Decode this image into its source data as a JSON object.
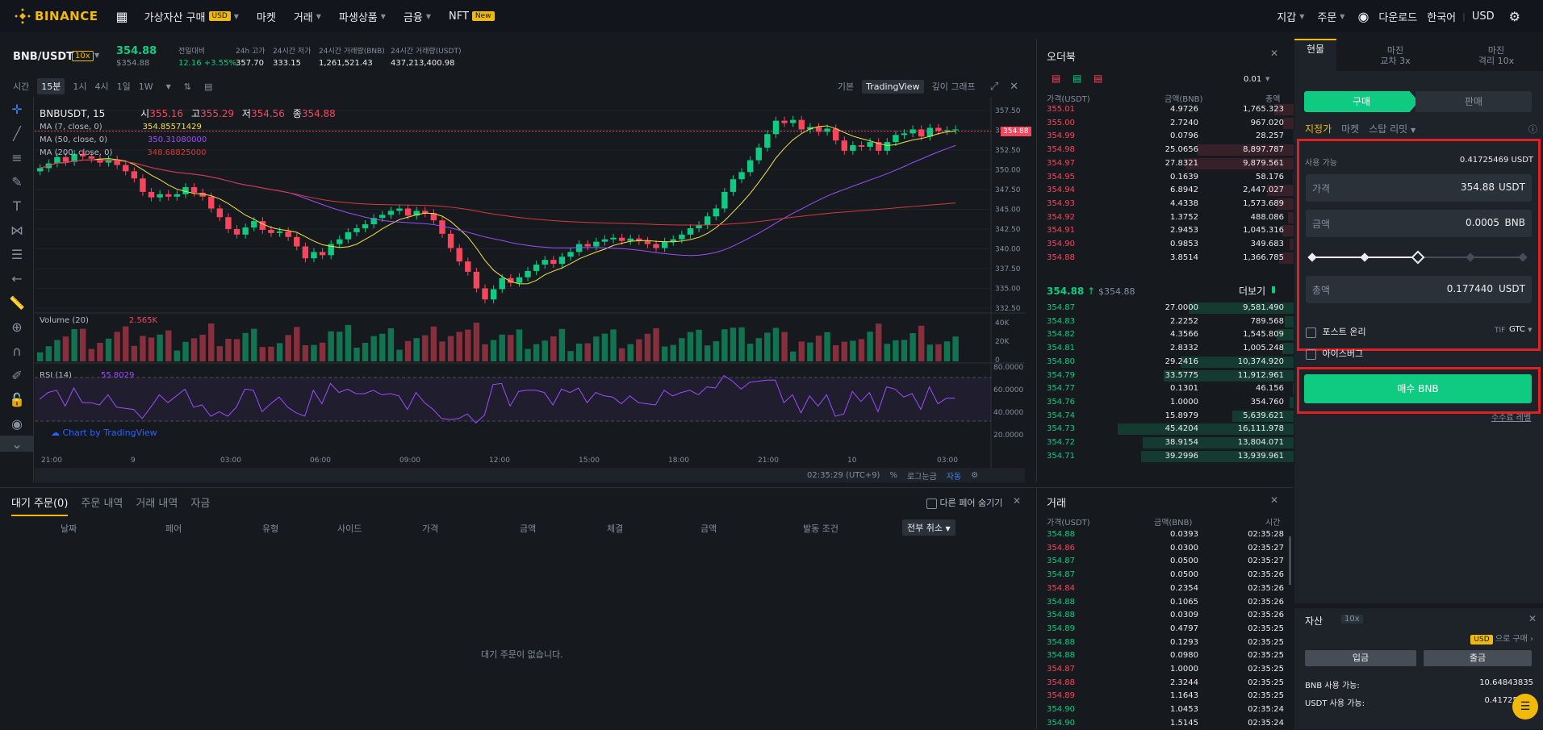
{
  "nav": {
    "logo": "BINANCE",
    "items": [
      "가상자산 구매",
      "마켓",
      "거래",
      "파생상품",
      "금융",
      "NFT"
    ],
    "usd_badge": "USD",
    "new_badge": "New",
    "right": [
      "지갑",
      "주문",
      "다운로드",
      "한국어",
      "USD"
    ]
  },
  "pair": {
    "symbol": "BNB/USDT",
    "leverage": "10x",
    "price": "354.88",
    "price_usd": "$354.88",
    "stats": [
      {
        "label": "전일대비",
        "value": "12.16 +3.55%"
      },
      {
        "label": "24h 고가",
        "value": "357.70"
      },
      {
        "label": "24시간 저가",
        "value": "333.15"
      },
      {
        "label": "24시간 거래량(BNB)",
        "value": "1,261,521.43"
      },
      {
        "label": "24시간 거래량(USDT)",
        "value": "437,213,400.98"
      }
    ]
  },
  "chart_toolbar": {
    "intervals": [
      "시간",
      "15분",
      "1시",
      "4시",
      "1일",
      "1W"
    ],
    "views": [
      "기본",
      "TradingView",
      "깊이 그래프"
    ]
  },
  "chart": {
    "title": "BNBUSDT, 15",
    "o_label": "시",
    "o": "355.16",
    "h_label": "고",
    "h": "355.29",
    "l_label": "저",
    "l": "354.56",
    "c_label": "종",
    "c": "354.88",
    "ma7": "MA (7, close, 0)",
    "ma7v": "354.85571429",
    "ma50": "MA (50, close, 0)",
    "ma50v": "350.31080000",
    "ma200": "MA (200, close, 0)",
    "ma200v": "348.68825000",
    "volume": "Volume (20)",
    "volv": "2.565K",
    "rsi": "RSI (14)",
    "rsiv": "55.8029",
    "credit": "Chart by TradingView",
    "last": "354.88",
    "price_ticks": [
      "357.50",
      "355.00",
      "352.50",
      "350.00",
      "347.50",
      "345.00",
      "342.50",
      "340.00",
      "337.50",
      "335.00",
      "332.50"
    ],
    "vol_ticks": [
      "40K",
      "20K",
      "0"
    ],
    "rsi_ticks": [
      "80.0000",
      "60.0000",
      "40.0000",
      "20.0000"
    ],
    "time_ticks": [
      "21:00",
      "9",
      "03:00",
      "06:00",
      "09:00",
      "12:00",
      "15:00",
      "18:00",
      "21:00",
      "10",
      "03:00"
    ],
    "footer": [
      "02:35:29 (UTC+9)",
      "%",
      "로그눈금",
      "자동"
    ]
  },
  "chart_data": {
    "type": "candlestick",
    "title": "BNBUSDT, 15",
    "ylim": [
      332.5,
      358
    ],
    "close": [
      350.2,
      350.8,
      351.6,
      351.0,
      352.0,
      351.7,
      351.4,
      350.9,
      351.3,
      350.6,
      349.8,
      348.9,
      347.2,
      346.5,
      346.9,
      346.6,
      346.9,
      347.8,
      347.1,
      346.6,
      345.1,
      344.0,
      342.5,
      341.8,
      342.7,
      343.5,
      342.4,
      342.0,
      342.2,
      341.5,
      340.3,
      338.8,
      339.6,
      339.2,
      340.6,
      341.2,
      342.1,
      342.6,
      343.1,
      343.9,
      344.3,
      344.8,
      345.1,
      344.2,
      344.8,
      344.5,
      343.6,
      341.9,
      340.1,
      338.4,
      337.1,
      335.0,
      333.6,
      334.9,
      336.3,
      335.7,
      336.4,
      337.2,
      338.0,
      338.6,
      338.1,
      339.0,
      339.6,
      340.6,
      340.3,
      340.9,
      341.2,
      341.4,
      341.0,
      341.3,
      341.0,
      340.6,
      340.1,
      340.9,
      341.2,
      341.8,
      342.6,
      343.0,
      344.1,
      345.1,
      347.2,
      348.8,
      349.7,
      351.2,
      352.8,
      354.5,
      356.2,
      355.9,
      356.3,
      355.1,
      355.4,
      354.8,
      355.2,
      353.7,
      352.4,
      353.1,
      352.9,
      353.5,
      352.4,
      353.5,
      354.4,
      354.6,
      355.1,
      354.2,
      355.3,
      354.9,
      355.0,
      355.1
    ]
  },
  "orderbook": {
    "title": "오더북",
    "tick": "0.01",
    "headers": [
      "가격(USDT)",
      "금액(BNB)",
      "총액"
    ],
    "asks": [
      [
        "355.01",
        "4.9726",
        "1,765.323"
      ],
      [
        "355.00",
        "2.7240",
        "967.020"
      ],
      [
        "354.99",
        "0.0796",
        "28.257"
      ],
      [
        "354.98",
        "25.0656",
        "8,897.787"
      ],
      [
        "354.97",
        "27.8321",
        "9,879.561"
      ],
      [
        "354.95",
        "0.1639",
        "58.176"
      ],
      [
        "354.94",
        "6.8942",
        "2,447.027"
      ],
      [
        "354.93",
        "4.4338",
        "1,573.689"
      ],
      [
        "354.92",
        "1.3752",
        "488.086"
      ],
      [
        "354.91",
        "2.9453",
        "1,045.316"
      ],
      [
        "354.90",
        "0.9853",
        "349.683"
      ],
      [
        "354.88",
        "3.8514",
        "1,366.785"
      ]
    ],
    "mid": "354.88",
    "mid_usd": "$354.88",
    "more": "더보기",
    "bids": [
      [
        "354.87",
        "27.0000",
        "9,581.490"
      ],
      [
        "354.83",
        "2.2252",
        "789.568"
      ],
      [
        "354.82",
        "4.3566",
        "1,545.809"
      ],
      [
        "354.81",
        "2.8332",
        "1,005.248"
      ],
      [
        "354.80",
        "29.2416",
        "10,374.920"
      ],
      [
        "354.79",
        "33.5775",
        "11,912.961"
      ],
      [
        "354.77",
        "0.1301",
        "46.156"
      ],
      [
        "354.76",
        "1.0000",
        "354.760"
      ],
      [
        "354.74",
        "15.8979",
        "5,639.621"
      ],
      [
        "354.73",
        "45.4204",
        "16,111.978"
      ],
      [
        "354.72",
        "38.9154",
        "13,804.071"
      ],
      [
        "354.71",
        "39.2996",
        "13,939.961"
      ]
    ]
  },
  "trades": {
    "title": "거래",
    "headers": [
      "가격(USDT)",
      "금액(BNB)",
      "시간"
    ],
    "rows": [
      [
        "354.88",
        "0.0393",
        "02:35:28",
        "g"
      ],
      [
        "354.86",
        "0.0300",
        "02:35:27",
        "r"
      ],
      [
        "354.87",
        "0.0500",
        "02:35:27",
        "g"
      ],
      [
        "354.87",
        "0.0500",
        "02:35:26",
        "g"
      ],
      [
        "354.84",
        "0.2354",
        "02:35:26",
        "r"
      ],
      [
        "354.88",
        "0.1065",
        "02:35:26",
        "g"
      ],
      [
        "354.88",
        "0.0309",
        "02:35:26",
        "g"
      ],
      [
        "354.89",
        "0.4797",
        "02:35:25",
        "g"
      ],
      [
        "354.88",
        "0.1293",
        "02:35:25",
        "g"
      ],
      [
        "354.88",
        "0.0980",
        "02:35:25",
        "g"
      ],
      [
        "354.87",
        "1.0000",
        "02:35:25",
        "r"
      ],
      [
        "354.88",
        "2.3244",
        "02:35:25",
        "r"
      ],
      [
        "354.89",
        "1.1643",
        "02:35:25",
        "r"
      ],
      [
        "354.90",
        "1.0453",
        "02:35:24",
        "g"
      ],
      [
        "354.90",
        "1.5145",
        "02:35:24",
        "g"
      ]
    ]
  },
  "bottom": {
    "tabs": [
      "대기 주문(0)",
      "주문 내역",
      "거래 내역",
      "자금"
    ],
    "hide_other": "다른 페어 숨기기",
    "columns": [
      "날짜",
      "페어",
      "유형",
      "사이드",
      "가격",
      "금액",
      "체결",
      "금액",
      "발동 조건"
    ],
    "cancel_all": "전부 취소",
    "empty": "대기 주문이 없습니다."
  },
  "trade_panel": {
    "tabs": [
      {
        "l1": "현물",
        "l2": ""
      },
      {
        "l1": "마진",
        "l2": "교차 3x"
      },
      {
        "l1": "마진",
        "l2": "격리 10x"
      }
    ],
    "buy": "구매",
    "sell": "판매",
    "order_types": [
      "지정가",
      "마켓",
      "스탑 리밋"
    ],
    "available_label": "사용 가능",
    "available": "0.41725469 USDT",
    "price_label": "가격",
    "price": "354.88",
    "price_unit": "USDT",
    "amount_label": "금액",
    "amount": "0.0005",
    "amount_unit": "BNB",
    "slider_percent": 0.5,
    "total_label": "총액",
    "total": "0.177440",
    "total_unit": "USDT",
    "post_only": "포스트 온리",
    "iceberg": "아이스버그",
    "tif": "TIF",
    "tif_value": "GTC",
    "submit": "매수 BNB",
    "fee_link": "수수료 레벨"
  },
  "assets": {
    "title": "자산",
    "leverage": "10x",
    "buy_link": "으로 구매",
    "deposit": "입금",
    "withdraw": "출금",
    "bnb_label": "BNB 사용 가능:",
    "bnb": "10.64843835",
    "usdt_label": "USDT 사용 가능:",
    "usdt": "0.41725469"
  },
  "colors": {
    "up": "#0ecb81",
    "down": "#f6465d",
    "accent": "#f0b90b",
    "bg": "#161a1e",
    "highlight": "#e02025"
  }
}
